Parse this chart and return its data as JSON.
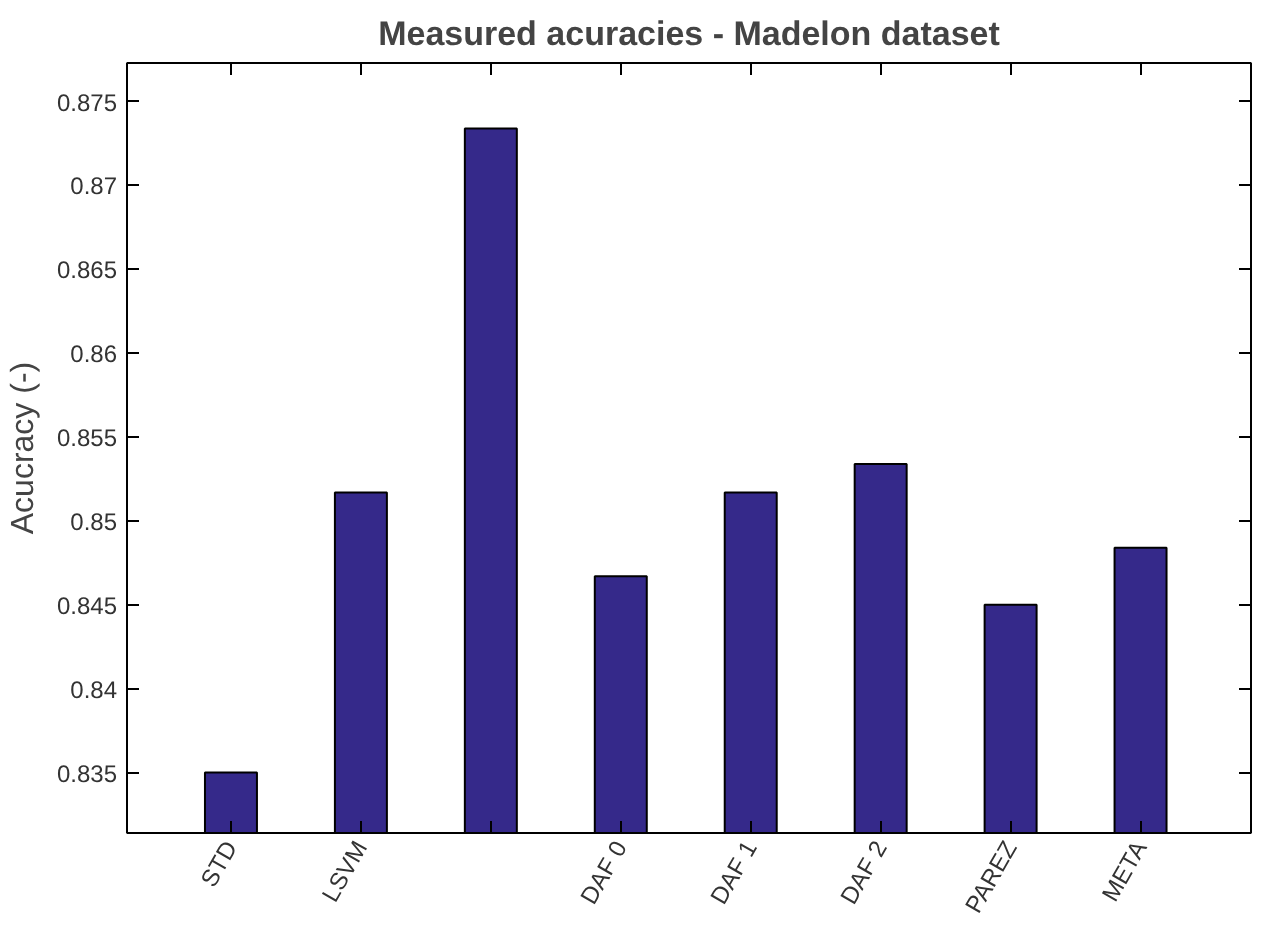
{
  "chart_data": {
    "type": "bar",
    "title": "Measured acuracies - Madelon dataset",
    "ylabel": "Acucracy (-)",
    "categories": [
      "STD",
      "LSVM",
      null,
      "DAF 0",
      "DAF 1",
      "DAF 2",
      "PAREZ",
      "META"
    ],
    "values": [
      0.835,
      0.8517,
      0.8734,
      0.8467,
      0.8517,
      0.8534,
      0.845,
      0.8484
    ],
    "color": "#35298a",
    "ylim": [
      0.8314,
      0.8773
    ],
    "yticks": [
      0.835,
      0.84,
      0.845,
      0.85,
      0.855,
      0.86,
      0.865,
      0.87,
      0.875
    ],
    "grid": false
  }
}
